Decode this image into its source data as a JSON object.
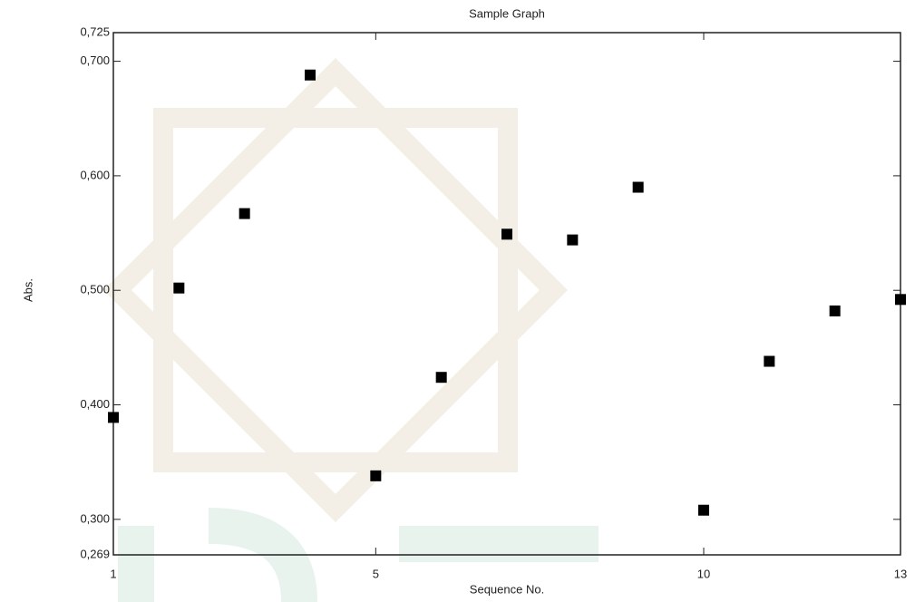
{
  "chart_data": {
    "type": "scatter",
    "title": "Sample Graph",
    "x_label": "Sequence No.",
    "y_label": "Abs.",
    "x": [
      1,
      2,
      3,
      4,
      5,
      6,
      7,
      8,
      9,
      10,
      11,
      12,
      13
    ],
    "values": [
      0.389,
      0.502,
      0.567,
      0.688,
      0.338,
      0.424,
      0.549,
      0.544,
      0.59,
      0.308,
      0.438,
      0.482,
      0.492
    ],
    "color": "#000000",
    "xlim": [
      1,
      13
    ],
    "xticks": [
      1,
      5,
      10,
      13
    ],
    "ylim": [
      0.269,
      0.725
    ],
    "yticks": [
      {
        "value": 0.269,
        "label": "0,269"
      },
      {
        "value": 0.3,
        "label": "0,300"
      },
      {
        "value": 0.4,
        "label": "0,400"
      },
      {
        "value": 0.5,
        "label": "0,500"
      },
      {
        "value": 0.6,
        "label": "0,600"
      },
      {
        "value": 0.7,
        "label": "0,700"
      },
      {
        "value": 0.725,
        "label": "0,725"
      }
    ],
    "grid": false
  }
}
